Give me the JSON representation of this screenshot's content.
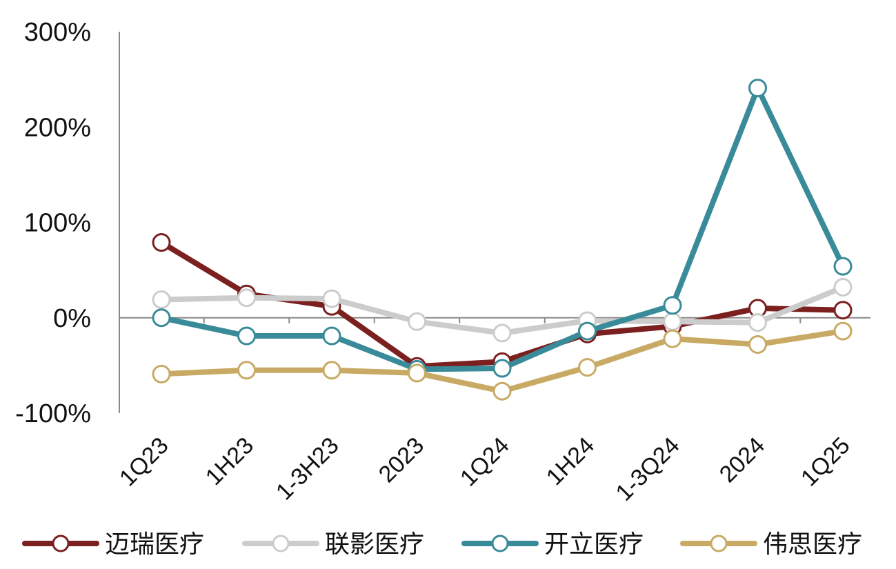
{
  "chart_data": {
    "type": "line",
    "title": "",
    "xlabel": "",
    "ylabel": "",
    "categories": [
      "1Q23",
      "1H23",
      "1-3H23",
      "2023",
      "1Q24",
      "1H24",
      "1-3Q24",
      "2024",
      "1Q25"
    ],
    "ylim": [
      -100,
      300
    ],
    "yticks": [
      300,
      200,
      100,
      0,
      -100
    ],
    "ytick_labels": [
      "300%",
      "200%",
      "100%",
      "0%",
      "-100%"
    ],
    "grid": false,
    "legend_position": "bottom",
    "series": [
      {
        "name": "迈瑞医疗",
        "color": "#7b1f1f",
        "values": [
          79,
          25,
          12,
          -51,
          -46,
          -17,
          -9,
          10,
          8
        ]
      },
      {
        "name": "联影医疗",
        "color": "#cccccc",
        "values": [
          19,
          21,
          20,
          -4,
          -16,
          -3,
          -4,
          -5,
          32
        ]
      },
      {
        "name": "开立医疗",
        "color": "#3a8b99",
        "values": [
          0,
          -19,
          -19,
          -54,
          -53,
          -14,
          13,
          241,
          54
        ]
      },
      {
        "name": "伟思医疗",
        "color": "#c9aa64",
        "values": [
          -59,
          -55,
          -55,
          -58,
          -77,
          -52,
          -22,
          -28,
          -14
        ]
      }
    ]
  }
}
